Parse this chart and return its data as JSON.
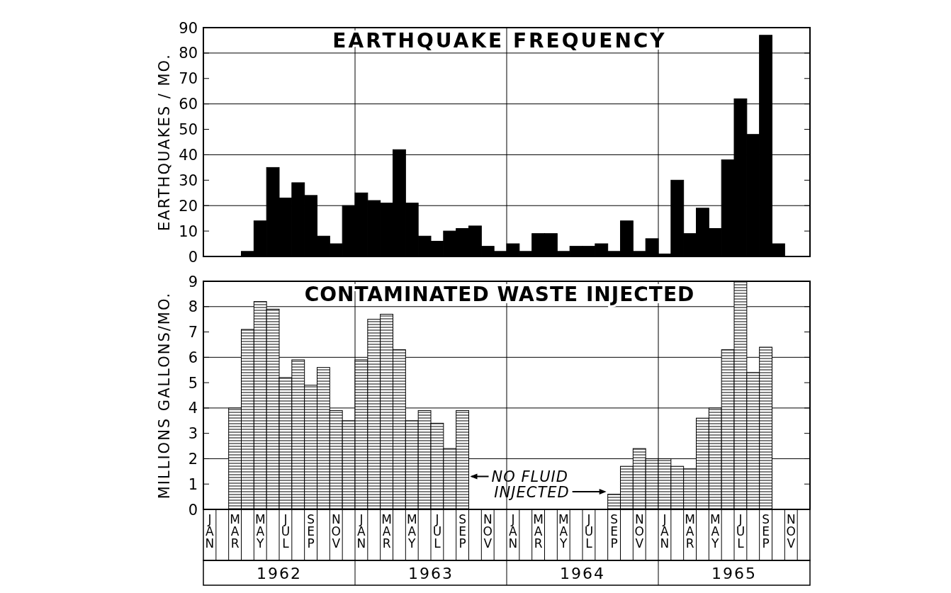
{
  "chart_data": [
    {
      "type": "bar",
      "title": "EARTHQUAKE FREQUENCY",
      "ylabel": "EARTHQUAKES / MO.",
      "categories": [
        null,
        null,
        null,
        null,
        null,
        null,
        null,
        null,
        null,
        null,
        null,
        null,
        null,
        null,
        null,
        null,
        null,
        null,
        null,
        null,
        null,
        null,
        null,
        null,
        null,
        null,
        null,
        null,
        null,
        null,
        null,
        null,
        null,
        null,
        null,
        null,
        null,
        null,
        null,
        null,
        null,
        null,
        null,
        null,
        null,
        null,
        null,
        null
      ],
      "values": [
        0,
        0,
        0,
        2,
        14,
        35,
        23,
        29,
        24,
        8,
        5,
        20,
        25,
        22,
        21,
        42,
        21,
        8,
        6,
        10,
        11,
        12,
        4,
        2,
        5,
        2,
        9,
        9,
        2,
        4,
        4,
        5,
        2,
        14,
        2,
        7,
        1,
        30,
        9,
        19,
        11,
        38,
        62,
        48,
        87,
        5,
        0,
        0
      ],
      "color": "#000000",
      "ylim": [
        0,
        90
      ],
      "yticks": [
        0,
        10,
        20,
        30,
        40,
        50,
        60,
        70,
        80,
        90
      ],
      "grid": true,
      "tick_labels": "y"
    },
    {
      "type": "bar",
      "title": "CONTAMINATED WASTE INJECTED",
      "ylabel": "MILLIONS GALLONS/MO.",
      "categories": [
        "JAN",
        null,
        "MAR",
        null,
        "MAY",
        null,
        "JUL",
        null,
        "SEP",
        null,
        "NOV",
        null,
        "JAN",
        null,
        "MAR",
        null,
        "MAY",
        null,
        "JUL",
        null,
        "SEP",
        null,
        "NOV",
        null,
        "JAN",
        null,
        "MAR",
        null,
        "MAY",
        null,
        "JUL",
        null,
        "SEP",
        null,
        "NOV",
        null,
        "JAN",
        null,
        "MAR",
        null,
        "MAY",
        null,
        "JUL",
        null,
        "SEP",
        null,
        "NOV",
        null
      ],
      "values": [
        0,
        0,
        4.0,
        7.1,
        8.2,
        7.9,
        5.2,
        5.9,
        4.9,
        5.6,
        3.9,
        3.5,
        5.9,
        7.5,
        7.7,
        6.3,
        3.5,
        3.9,
        3.4,
        2.4,
        3.9,
        0,
        0,
        0,
        0,
        0,
        0,
        0,
        0,
        0,
        0,
        0,
        0.6,
        1.7,
        2.4,
        2.0,
        2.0,
        1.7,
        1.6,
        3.6,
        4.0,
        6.3,
        9.0,
        5.4,
        6.4,
        0,
        0,
        0
      ],
      "color": "#000000",
      "ylim": [
        0,
        9
      ],
      "yticks": [
        0,
        1,
        2,
        3,
        4,
        5,
        6,
        7,
        8,
        9
      ],
      "grid": true,
      "annotations": [
        "NO FLUID",
        "INJECTED",
        "1962",
        "1963",
        "1964",
        "1965"
      ]
    }
  ]
}
